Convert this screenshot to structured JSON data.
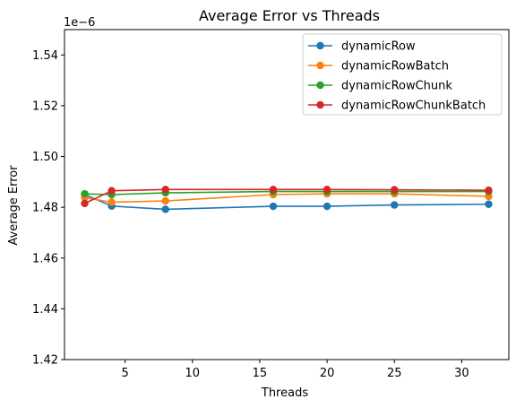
{
  "chart_data": {
    "type": "line",
    "title": "Average Error vs Threads",
    "xlabel": "Threads",
    "ylabel": "Average Error",
    "y_offset_label": "1e−6",
    "x": [
      2,
      4,
      8,
      16,
      20,
      25,
      32
    ],
    "xticks": [
      5,
      10,
      15,
      20,
      25,
      30
    ],
    "xtick_labels": [
      "5",
      "10",
      "15",
      "20",
      "25",
      "30"
    ],
    "yticks": [
      1.42,
      1.44,
      1.46,
      1.48,
      1.5,
      1.52,
      1.54
    ],
    "ytick_labels": [
      "1.42",
      "1.44",
      "1.46",
      "1.48",
      "1.50",
      "1.52",
      "1.54"
    ],
    "xlim": [
      0.5,
      33.5
    ],
    "ylim": [
      1.42,
      1.55
    ],
    "grid": false,
    "legend_position": "top-right",
    "series": [
      {
        "name": "dynamicRow",
        "color": "#1f77b4",
        "values": [
          1.485,
          1.4805,
          1.4792,
          1.4804,
          1.4804,
          1.4809,
          1.4812
        ]
      },
      {
        "name": "dynamicRowBatch",
        "color": "#ff7f0e",
        "values": [
          1.4838,
          1.482,
          1.4825,
          1.485,
          1.4853,
          1.4853,
          1.4843
        ]
      },
      {
        "name": "dynamicRowChunk",
        "color": "#2ca02c",
        "values": [
          1.4853,
          1.485,
          1.4857,
          1.4862,
          1.4862,
          1.4862,
          1.4862
        ]
      },
      {
        "name": "dynamicRowChunkBatch",
        "color": "#d62728",
        "values": [
          1.4815,
          1.4865,
          1.487,
          1.487,
          1.487,
          1.4869,
          1.4867
        ]
      }
    ]
  }
}
